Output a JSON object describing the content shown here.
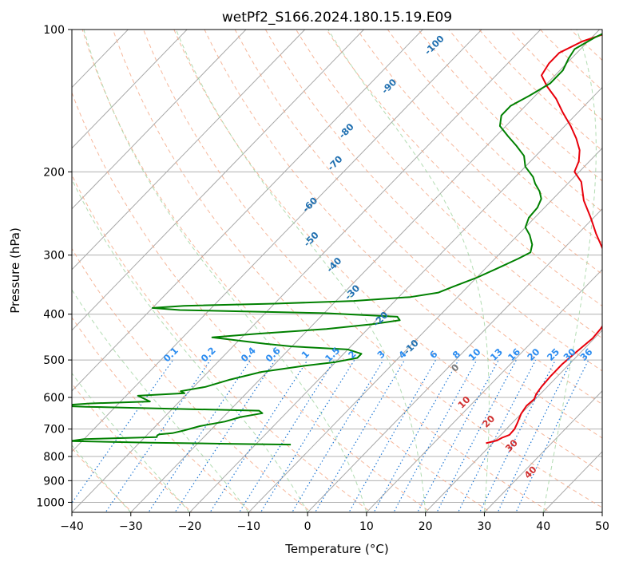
{
  "chart_data": {
    "type": "line",
    "title": "wetPf2_S166.2024.180.15.19.E09",
    "xlabel": "Temperature (°C)",
    "ylabel": "Pressure (hPa)",
    "xlim": [
      -40,
      50
    ],
    "ylim": [
      1050,
      100
    ],
    "y_scale": "log",
    "grid": true,
    "x_ticks": [
      -40,
      -30,
      -20,
      -10,
      0,
      10,
      20,
      30,
      40,
      50
    ],
    "x_tick_labels": [
      "−40",
      "−30",
      "−20",
      "−10",
      "0",
      "10",
      "20",
      "30",
      "40",
      "50"
    ],
    "y_ticks": [
      100,
      200,
      300,
      400,
      500,
      600,
      700,
      800,
      900,
      1000
    ],
    "y_tick_labels": [
      "100",
      "200",
      "300",
      "400",
      "500",
      "600",
      "700",
      "800",
      "900",
      "1000"
    ],
    "series": [
      {
        "color": "#e8000b",
        "points": [
          [
            750,
            18.9
          ],
          [
            740,
            20.3
          ],
          [
            730,
            20.7
          ],
          [
            720,
            21.5
          ],
          [
            700,
            21.4
          ],
          [
            680,
            20.9
          ],
          [
            650,
            20.0
          ],
          [
            625,
            19.6
          ],
          [
            605,
            19.8
          ],
          [
            590,
            19.3
          ],
          [
            570,
            19.0
          ],
          [
            540,
            18.8
          ],
          [
            510,
            18.8
          ],
          [
            480,
            19.2
          ],
          [
            450,
            19.7
          ],
          [
            430,
            19.5
          ],
          [
            410,
            19.0
          ],
          [
            390,
            19.1
          ],
          [
            375,
            18.5
          ],
          [
            360,
            17.0
          ],
          [
            345,
            15.0
          ],
          [
            330,
            12.5
          ],
          [
            310,
            9.5
          ],
          [
            290,
            6.5
          ],
          [
            270,
            3.0
          ],
          [
            250,
            -0.5
          ],
          [
            230,
            -4.5
          ],
          [
            210,
            -8.0
          ],
          [
            200,
            -10.8
          ],
          [
            190,
            -11.8
          ],
          [
            180,
            -13.5
          ],
          [
            170,
            -16.0
          ],
          [
            160,
            -19.0
          ],
          [
            150,
            -22.5
          ],
          [
            140,
            -26.0
          ],
          [
            132,
            -29.5
          ],
          [
            125,
            -32.3
          ],
          [
            118,
            -33.0
          ],
          [
            112,
            -33.0
          ],
          [
            106,
            -31.0
          ],
          [
            100,
            -27.0
          ]
        ]
      },
      {
        "color": "#008000",
        "points": [
          [
            755,
            -14.0
          ],
          [
            752,
            -25.0
          ],
          [
            748,
            -38.0
          ],
          [
            742,
            -52.0
          ],
          [
            735,
            -50.0
          ],
          [
            728,
            -38.0
          ],
          [
            722,
            -38.2
          ],
          [
            718,
            -38.0
          ],
          [
            714,
            -36.0
          ],
          [
            705,
            -34.5
          ],
          [
            690,
            -32.5
          ],
          [
            675,
            -29.0
          ],
          [
            660,
            -27.0
          ],
          [
            648,
            -24.0
          ],
          [
            640,
            -25.0
          ],
          [
            634,
            -40.0
          ],
          [
            628,
            -55.0
          ],
          [
            625,
            -60.0
          ],
          [
            618,
            -55.0
          ],
          [
            612,
            -45.0
          ],
          [
            595,
            -48.0
          ],
          [
            588,
            -40.5
          ],
          [
            582,
            -41.5
          ],
          [
            570,
            -38.0
          ],
          [
            550,
            -35.0
          ],
          [
            530,
            -31.0
          ],
          [
            515,
            -25.0
          ],
          [
            505,
            -20.0
          ],
          [
            495,
            -17.0
          ],
          [
            485,
            -17.0
          ],
          [
            475,
            -20.0
          ],
          [
            468,
            -30.0
          ],
          [
            462,
            -35.0
          ],
          [
            455,
            -40.0
          ],
          [
            448,
            -45.0
          ],
          [
            440,
            -38.0
          ],
          [
            430,
            -27.0
          ],
          [
            420,
            -20.0
          ],
          [
            412,
            -16.0
          ],
          [
            405,
            -17.0
          ],
          [
            398,
            -30.0
          ],
          [
            392,
            -55.0
          ],
          [
            388,
            -60.0
          ],
          [
            384,
            -55.0
          ],
          [
            380,
            -40.0
          ],
          [
            375,
            -27.0
          ],
          [
            368,
            -18.0
          ],
          [
            360,
            -14.0
          ],
          [
            350,
            -12.5
          ],
          [
            335,
            -10.0
          ],
          [
            320,
            -8.0
          ],
          [
            305,
            -6.0
          ],
          [
            296,
            -5.0
          ],
          [
            285,
            -6.0
          ],
          [
            272,
            -8.0
          ],
          [
            262,
            -10.0
          ],
          [
            250,
            -11.0
          ],
          [
            238,
            -11.2
          ],
          [
            228,
            -12.0
          ],
          [
            220,
            -13.5
          ],
          [
            212,
            -15.5
          ],
          [
            205,
            -17.0
          ],
          [
            195,
            -20.0
          ],
          [
            185,
            -22.0
          ],
          [
            176,
            -25.0
          ],
          [
            168,
            -28.0
          ],
          [
            160,
            -31.0
          ],
          [
            152,
            -32.5
          ],
          [
            145,
            -32.5
          ],
          [
            138,
            -31.0
          ],
          [
            130,
            -29.5
          ],
          [
            122,
            -29.5
          ],
          [
            115,
            -30.5
          ],
          [
            110,
            -31.0
          ],
          [
            104,
            -29.5
          ],
          [
            100,
            -28.0
          ]
        ]
      }
    ],
    "background_lines": {
      "isotherm_step_c": 10,
      "dry_adiabat_thetas_k": [
        200,
        210,
        220,
        230,
        240,
        250,
        260,
        270,
        280,
        290,
        300,
        310,
        320,
        330,
        340,
        350,
        360,
        370,
        380,
        390,
        400,
        410,
        420,
        430,
        440,
        450,
        460,
        470,
        480,
        490,
        500,
        510,
        520,
        530,
        540,
        550
      ],
      "moist_adiabat_start_c": [
        -40,
        -30,
        -20,
        -10,
        0,
        10,
        20,
        30,
        40,
        50
      ],
      "mixing_ratios_g_kg": [
        0.1,
        0.2,
        0.4,
        0.6,
        1,
        1.5,
        2,
        3,
        4,
        6,
        8,
        10,
        13,
        16,
        20,
        25,
        30,
        36
      ]
    },
    "mixing_ratio_labels": [
      "0.1",
      "0.2",
      "0.4",
      "0.6",
      "1",
      "1.5",
      "2",
      "3",
      "4",
      "6",
      "8",
      "10",
      "13",
      "16",
      "20",
      "25",
      "30",
      "36"
    ],
    "blue_labels": [
      {
        "text": "-100",
        "p": 108,
        "t": -55.4
      },
      {
        "text": "-90",
        "p": 132,
        "t": -56.3
      },
      {
        "text": "-80",
        "p": 164,
        "t": -56.2
      },
      {
        "text": "-70",
        "p": 192,
        "t": -52.8
      },
      {
        "text": "-60",
        "p": 235,
        "t": -50.2
      },
      {
        "text": "-50",
        "p": 278,
        "t": -44.3
      },
      {
        "text": "-40",
        "p": 315,
        "t": -36.2
      },
      {
        "text": "-30",
        "p": 360,
        "t": -28.6
      },
      {
        "text": "-20",
        "p": 410,
        "t": -19.4
      },
      {
        "text": "-10",
        "p": 470,
        "t": -9.6
      }
    ],
    "gray_labels": [
      {
        "text": "0",
        "p": 520,
        "t": 1.3
      }
    ],
    "red_labels": [
      {
        "text": "10",
        "p": 615,
        "t": 8.5
      },
      {
        "text": "20",
        "p": 675,
        "t": 15.8
      },
      {
        "text": "30",
        "p": 760,
        "t": 23.7
      },
      {
        "text": "40",
        "p": 865,
        "t": 31.3
      }
    ]
  }
}
